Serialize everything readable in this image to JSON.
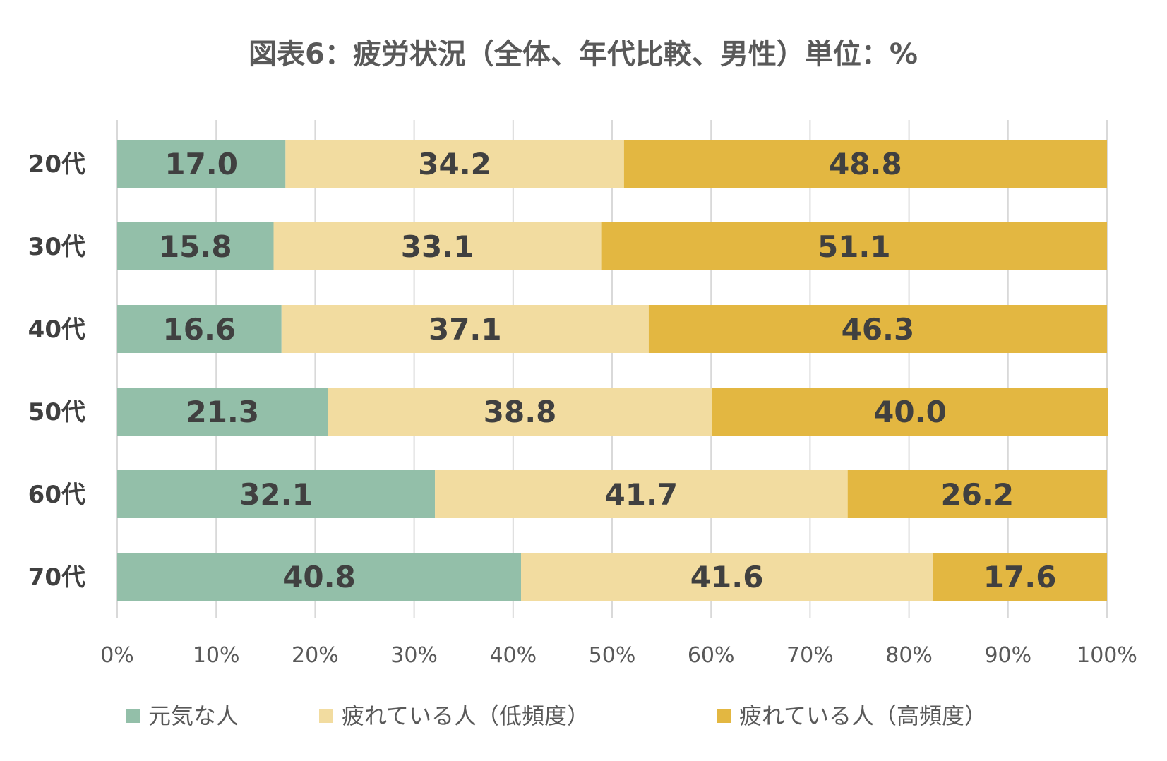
{
  "chart_data": {
    "type": "bar",
    "orientation": "horizontal",
    "stacked": true,
    "title": "図表6：疲労状況（全体、年代比較、男性）単位：%",
    "categories": [
      "20代",
      "30代",
      "40代",
      "50代",
      "60代",
      "70代"
    ],
    "series": [
      {
        "name": "元気な人",
        "color": "#93bfa9",
        "values": [
          17.0,
          15.8,
          16.6,
          21.3,
          32.1,
          40.8
        ]
      },
      {
        "name": "疲れている人（低頻度）",
        "color": "#f2dca0",
        "values": [
          34.2,
          33.1,
          37.1,
          38.8,
          41.7,
          41.6
        ]
      },
      {
        "name": "疲れている人（高頻度）",
        "color": "#e3b741",
        "values": [
          48.8,
          51.1,
          46.3,
          40.0,
          26.2,
          17.6
        ]
      }
    ],
    "data_labels": [
      [
        "17.0",
        "34.2",
        "48.8"
      ],
      [
        "15.8",
        "33.1",
        "51.1"
      ],
      [
        "16.6",
        "37.1",
        "46.3"
      ],
      [
        "21.3",
        "38.8",
        "40.0"
      ],
      [
        "32.1",
        "41.7",
        "26.2"
      ],
      [
        "40.8",
        "41.6",
        "17.6"
      ]
    ],
    "xlim": [
      0,
      100
    ],
    "xticks": [
      "0%",
      "10%",
      "20%",
      "30%",
      "40%",
      "50%",
      "60%",
      "70%",
      "80%",
      "90%",
      "100%"
    ],
    "grid": true,
    "legend": "bottom"
  }
}
